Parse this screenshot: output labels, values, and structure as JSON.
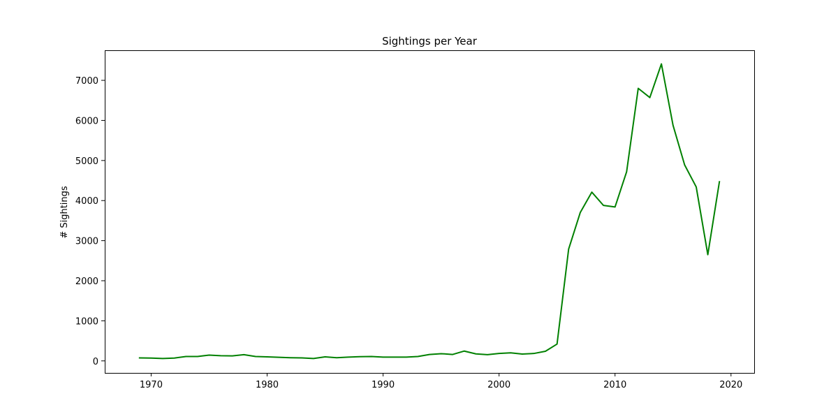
{
  "chart_data": {
    "type": "line",
    "title": "Sightings per Year",
    "xlabel": "",
    "ylabel": "# Sightings",
    "xlim": [
      1966,
      2022
    ],
    "ylim": [
      -300,
      7750
    ],
    "xticks": [
      1970,
      1980,
      1990,
      2000,
      2010,
      2020
    ],
    "yticks": [
      0,
      1000,
      2000,
      3000,
      4000,
      5000,
      6000,
      7000
    ],
    "grid": false,
    "line_color": "#008000",
    "series": [
      {
        "x": [
          1969,
          1970,
          1971,
          1972,
          1973,
          1974,
          1975,
          1976,
          1977,
          1978,
          1979,
          1980,
          1981,
          1982,
          1983,
          1984,
          1985,
          1986,
          1987,
          1988,
          1989,
          1990,
          1991,
          1992,
          1993,
          1994,
          1995,
          1996,
          1997,
          1998,
          1999,
          2000,
          2001,
          2002,
          2003,
          2004,
          2005,
          2006,
          2007,
          2008,
          2009,
          2010,
          2011,
          2012,
          2013,
          2014,
          2015,
          2016,
          2017,
          2018,
          2019
        ],
        "values": [
          75,
          70,
          60,
          70,
          110,
          110,
          145,
          130,
          125,
          155,
          110,
          100,
          90,
          80,
          75,
          60,
          100,
          80,
          95,
          105,
          110,
          95,
          95,
          95,
          110,
          160,
          180,
          160,
          245,
          175,
          155,
          185,
          200,
          170,
          185,
          240,
          420,
          2790,
          3700,
          4210,
          3880,
          3840,
          4720,
          6800,
          6570,
          7410,
          5880,
          4890,
          4340,
          2650,
          4470
        ]
      }
    ]
  }
}
